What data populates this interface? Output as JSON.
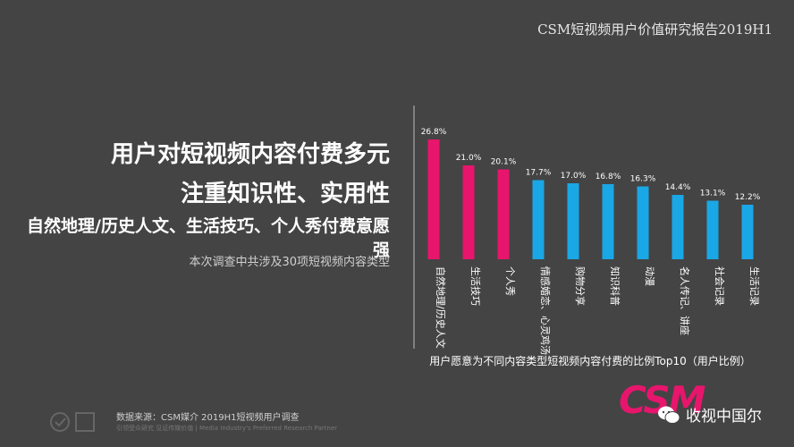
{
  "report_title": "CSM短视频用户价值研究报告2019H1",
  "headline": {
    "line1": "用户对短视频内容付费多元",
    "line2": "注重知识性、实用性",
    "line3": "自然地理/历史人文、生活技巧、个人秀付费意愿强"
  },
  "note": "本次调查中共涉及30项短视频内容类型",
  "chart_data": {
    "type": "bar",
    "categories": [
      "自然地理/历史人文",
      "生活技巧",
      "个人秀",
      "情感婚恋、心灵鸡汤",
      "购物分享",
      "知识科普",
      "动漫",
      "名人传记、讲座",
      "社会记录",
      "生活记录"
    ],
    "values": [
      26.8,
      21.0,
      20.1,
      17.7,
      17.0,
      16.8,
      16.3,
      14.4,
      13.1,
      12.2
    ],
    "value_labels": [
      "26.8%",
      "21.0%",
      "20.1%",
      "17.7%",
      "17.0%",
      "16.8%",
      "16.3%",
      "14.4%",
      "13.1%",
      "12.2%"
    ],
    "xlabel": "用户愿意为不同内容类型短视频内容付费的比例Top10（用户比例）",
    "ylim": [
      0,
      30
    ],
    "colors": [
      "#e8156d",
      "#e8156d",
      "#e8156d",
      "#1aa7e6",
      "#1aa7e6",
      "#1aa7e6",
      "#1aa7e6",
      "#1aa7e6",
      "#1aa7e6",
      "#1aa7e6"
    ]
  },
  "footer": {
    "source": "数据来源：CSM媒介 2019H1短视频用户调查",
    "tagline": "引领受众研究 见证传媒价值 | Media Industry's Preferred Research Partner",
    "brand": "CSM",
    "wechat": "收视中国尔"
  }
}
